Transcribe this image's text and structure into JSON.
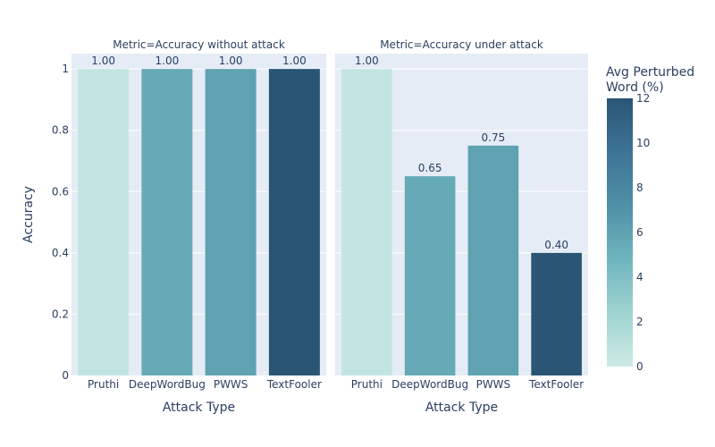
{
  "chart_data": {
    "type": "bar",
    "panels": [
      {
        "title": "Metric=Accuracy without attack",
        "categories": [
          "Pruthi",
          "DeepWordBug",
          "PWWS",
          "TextFooler"
        ],
        "values": [
          1.0,
          1.0,
          1.0,
          1.0
        ],
        "value_labels": [
          "1.00",
          "1.00",
          "1.00",
          "1.00"
        ],
        "color_values": [
          0.5,
          5.5,
          6.0,
          12.0
        ]
      },
      {
        "title": "Metric=Accuracy under attack",
        "categories": [
          "Pruthi",
          "DeepWordBug",
          "PWWS",
          "TextFooler"
        ],
        "values": [
          1.0,
          0.65,
          0.75,
          0.4
        ],
        "value_labels": [
          "1.00",
          "0.65",
          "0.75",
          "0.40"
        ],
        "color_values": [
          0.5,
          5.5,
          6.0,
          12.0
        ]
      }
    ],
    "xlabel": "Attack Type",
    "ylabel": "Accuracy",
    "ylim": [
      0,
      1.05
    ],
    "yticks": [
      0,
      0.2,
      0.4,
      0.6,
      0.8,
      1
    ],
    "ytick_labels": [
      "0",
      "0.2",
      "0.4",
      "0.6",
      "0.8",
      "1"
    ],
    "colorbar": {
      "title_lines": [
        "Avg Perturbed",
        "Word (%)"
      ],
      "range": [
        0,
        12
      ],
      "ticks": [
        0,
        2,
        4,
        6,
        8,
        10,
        12
      ],
      "tick_labels": [
        "0",
        "2",
        "4",
        "6",
        "8",
        "10",
        "12"
      ],
      "colors": [
        "#cdeae5",
        "#9fd3d0",
        "#6fb5be",
        "#4f90a6",
        "#3d7496",
        "#2a5574"
      ]
    },
    "grid": true,
    "plot_bg": "#e5ecf6"
  }
}
